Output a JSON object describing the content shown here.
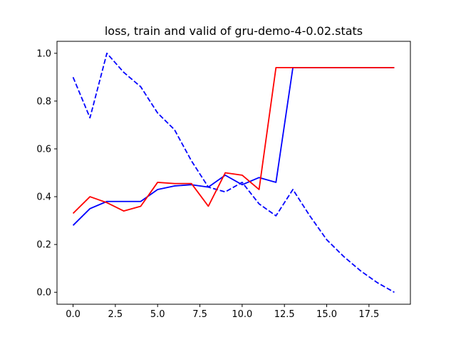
{
  "chart_data": {
    "type": "line",
    "title": "loss, train and valid of gru-demo-4-0.02.stats",
    "xlabel": "",
    "ylabel": "",
    "xlim": [
      -0.95,
      19.95
    ],
    "ylim": [
      -0.05,
      1.05
    ],
    "xticks": [
      0.0,
      2.5,
      5.0,
      7.5,
      10.0,
      12.5,
      15.0,
      17.5
    ],
    "xtick_labels": [
      "0.0",
      "2.5",
      "5.0",
      "7.5",
      "10.0",
      "12.5",
      "15.0",
      "17.5"
    ],
    "yticks": [
      0.0,
      0.2,
      0.4,
      0.6,
      0.8,
      1.0
    ],
    "ytick_labels": [
      "0.0",
      "0.2",
      "0.4",
      "0.6",
      "0.8",
      "1.0"
    ],
    "grid": false,
    "legend": "none",
    "x": [
      0,
      1,
      2,
      3,
      4,
      5,
      6,
      7,
      8,
      9,
      10,
      11,
      12,
      13,
      14,
      15,
      16,
      17,
      18,
      19
    ],
    "series": [
      {
        "color": "#0000ff",
        "style": "dashed",
        "values": [
          0.9,
          0.73,
          1.0,
          0.92,
          0.86,
          0.75,
          0.68,
          0.55,
          0.44,
          0.42,
          0.46,
          0.37,
          0.32,
          0.43,
          0.32,
          0.22,
          0.15,
          0.09,
          0.04,
          0.0
        ]
      },
      {
        "color": "#0000ff",
        "style": "solid",
        "values": [
          0.28,
          0.35,
          0.38,
          0.38,
          0.38,
          0.43,
          0.445,
          0.45,
          0.44,
          0.49,
          0.45,
          0.48,
          0.46,
          0.94,
          0.94,
          0.94,
          0.94,
          0.94,
          0.94,
          0.94
        ]
      },
      {
        "color": "#ff0000",
        "style": "solid",
        "values": [
          0.33,
          0.4,
          0.375,
          0.34,
          0.36,
          0.46,
          0.455,
          0.455,
          0.36,
          0.5,
          0.49,
          0.43,
          0.94,
          0.94,
          0.94,
          0.94,
          0.94,
          0.94,
          0.94,
          0.94
        ]
      }
    ]
  }
}
